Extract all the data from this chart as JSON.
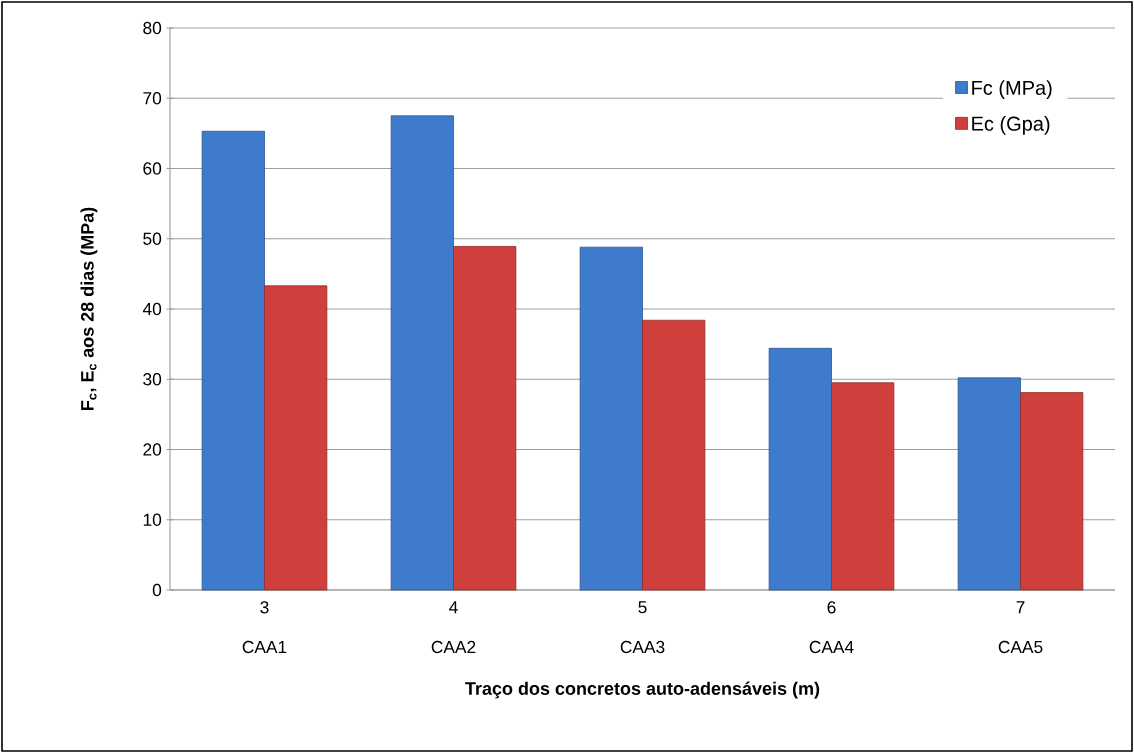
{
  "chart_data": {
    "type": "bar",
    "xlabel": "Traço dos concretos auto-adensáveis (m)",
    "ylabel": "F$_{c}$, E$_{c}$ aos 28 dias (MPa)",
    "categories": [
      "3",
      "4",
      "5",
      "6",
      "7"
    ],
    "series": [
      {
        "name": "Fc (MPa)",
        "color": "#3f7bcc",
        "values": [
          65.3,
          67.5,
          48.8,
          34.4,
          30.2
        ]
      },
      {
        "name": "Ec (Gpa)",
        "color": "#cf3f3c",
        "values": [
          43.3,
          48.9,
          38.4,
          29.5,
          28.1
        ]
      }
    ],
    "annotations": [
      "CAA1",
      "CAA2",
      "CAA3",
      "CAA4",
      "CAA5"
    ],
    "ylim": [
      0,
      80
    ],
    "yticks": [
      0,
      10,
      20,
      30,
      40,
      50,
      60,
      70,
      80
    ],
    "grid": "y",
    "legend": "top right"
  }
}
